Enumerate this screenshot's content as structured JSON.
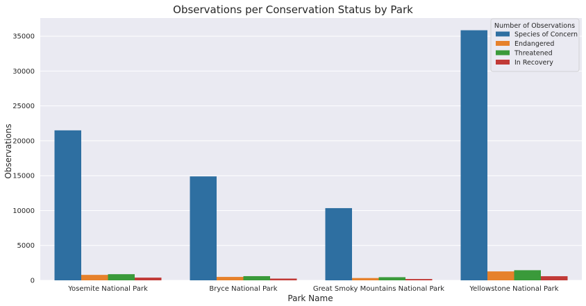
{
  "chart_data": {
    "type": "bar",
    "title": "Observations per Conservation Status by Park",
    "xlabel": "Park Name",
    "ylabel": "Observations",
    "categories": [
      "Yosemite National Park",
      "Bryce National Park",
      "Great Smoky Mountains National Park",
      "Yellowstone National Park"
    ],
    "series": [
      {
        "name": "Species of Concern",
        "color": "#2e6fa1",
        "values": [
          21500,
          14900,
          10350,
          35850
        ]
      },
      {
        "name": "Endangered",
        "color": "#e6812b",
        "values": [
          780,
          490,
          330,
          1280
        ]
      },
      {
        "name": "Threatened",
        "color": "#3a9a3a",
        "values": [
          880,
          600,
          450,
          1450
        ]
      },
      {
        "name": "In Recovery",
        "color": "#c13a37",
        "values": [
          390,
          250,
          190,
          590
        ]
      }
    ],
    "yticks": [
      0,
      5000,
      10000,
      15000,
      20000,
      25000,
      30000,
      35000
    ],
    "ylim": [
      0,
      37600
    ],
    "grid": true,
    "legend": {
      "title": "Number of Observations",
      "placement": "top-right"
    },
    "background": "#eaeaf2",
    "grid_color": "#ffffff"
  }
}
